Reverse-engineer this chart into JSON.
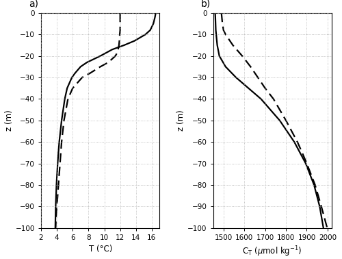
{
  "panel_a": {
    "label": "a)",
    "xlabel": "T (°C)",
    "ylabel": "z (m)",
    "xlim": [
      2,
      17
    ],
    "ylim": [
      -100,
      0
    ],
    "xticks": [
      2,
      4,
      6,
      8,
      10,
      12,
      14,
      16
    ],
    "yticks": [
      0,
      -10,
      -20,
      -30,
      -40,
      -50,
      -60,
      -70,
      -80,
      -90,
      -100
    ],
    "july_z": [
      0,
      -2,
      -5,
      -8,
      -10,
      -13,
      -15,
      -17,
      -20,
      -23,
      -25,
      -28,
      -30,
      -35,
      -40,
      -50,
      -60,
      -70,
      -80,
      -90,
      -100
    ],
    "july_T": [
      16.5,
      16.4,
      16.2,
      15.8,
      15.2,
      13.8,
      12.5,
      11.0,
      9.5,
      7.8,
      7.0,
      6.3,
      5.9,
      5.3,
      5.0,
      4.6,
      4.3,
      4.1,
      3.95,
      3.85,
      3.8
    ],
    "oct_z": [
      0,
      -2,
      -5,
      -8,
      -10,
      -13,
      -15,
      -18,
      -20,
      -23,
      -25,
      -28,
      -30,
      -35,
      -40,
      -50,
      -60,
      -70,
      -80,
      -90,
      -95,
      -100
    ],
    "oct_T": [
      12.0,
      12.0,
      12.0,
      12.0,
      11.95,
      11.9,
      11.85,
      11.7,
      11.4,
      10.5,
      9.5,
      8.2,
      7.2,
      6.0,
      5.4,
      4.9,
      4.6,
      4.4,
      4.2,
      4.0,
      3.9,
      3.85
    ]
  },
  "panel_b": {
    "label": "b)",
    "ylabel": "z (m)",
    "xlim": [
      1450,
      2020
    ],
    "ylim": [
      -100,
      0
    ],
    "xticks": [
      1500,
      1600,
      1700,
      1800,
      1900,
      2000
    ],
    "yticks": [
      0,
      -10,
      -20,
      -30,
      -40,
      -50,
      -60,
      -70,
      -80,
      -90,
      -100
    ],
    "july_z": [
      0,
      -2,
      -5,
      -8,
      -10,
      -15,
      -20,
      -25,
      -30,
      -35,
      -40,
      -50,
      -60,
      -70,
      -80,
      -90,
      -100
    ],
    "july_CT": [
      1460,
      1461,
      1462,
      1463,
      1465,
      1470,
      1480,
      1510,
      1560,
      1620,
      1680,
      1770,
      1840,
      1895,
      1935,
      1962,
      1980
    ],
    "oct_z": [
      0,
      -2,
      -5,
      -8,
      -10,
      -15,
      -20,
      -25,
      -30,
      -35,
      -40,
      -50,
      -60,
      -65,
      -70,
      -80,
      -90,
      -100
    ],
    "oct_CT": [
      1490,
      1492,
      1495,
      1500,
      1510,
      1545,
      1590,
      1630,
      1665,
      1700,
      1740,
      1800,
      1855,
      1878,
      1900,
      1940,
      1970,
      1998
    ]
  },
  "line_color": "#000000",
  "line_width": 1.6,
  "grid_color": "#b0b0b0",
  "background_color": "#ffffff"
}
